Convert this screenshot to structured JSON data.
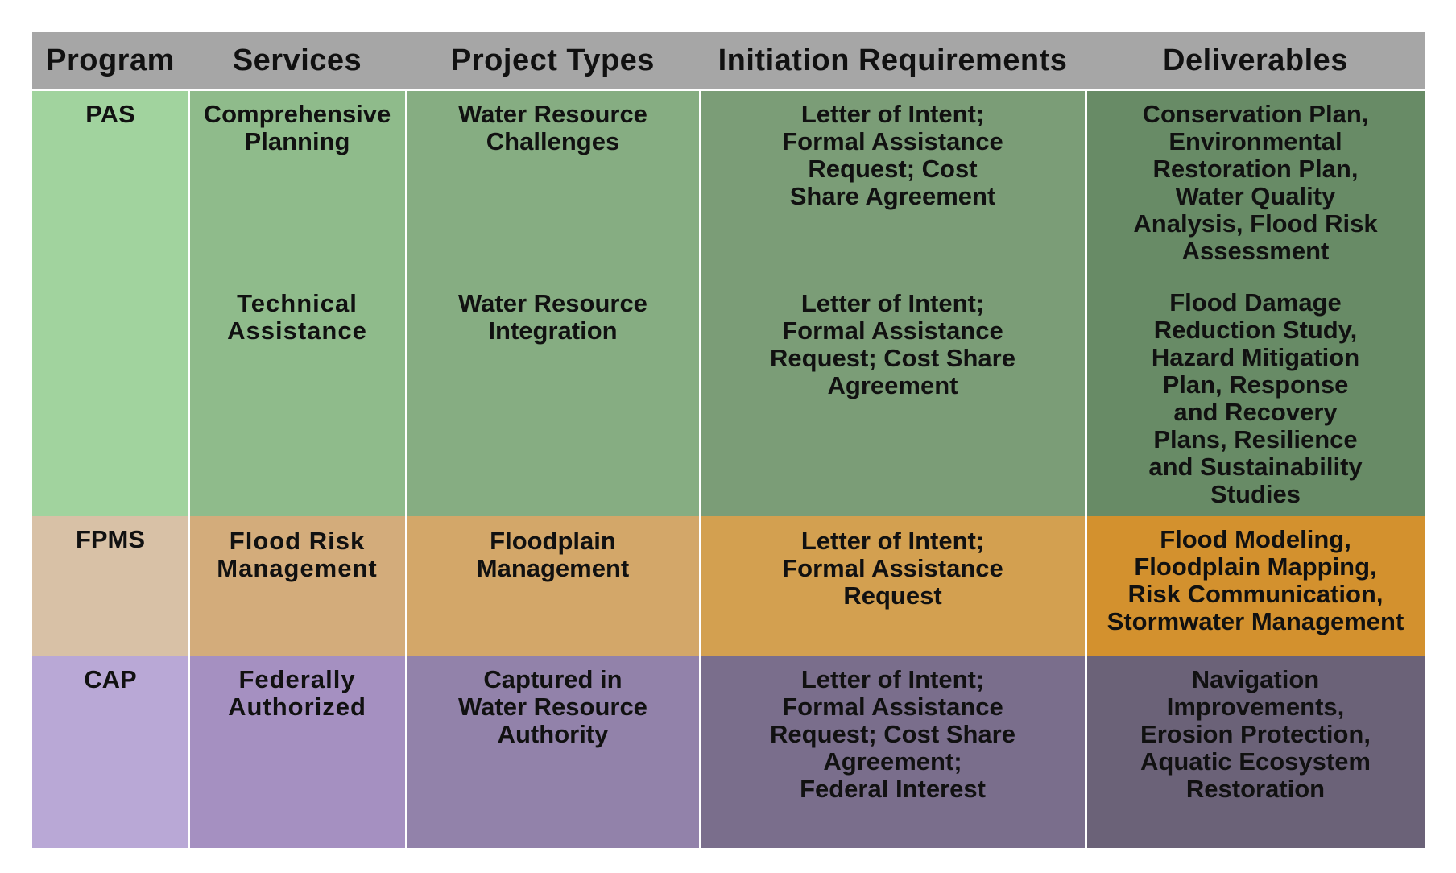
{
  "header": {
    "program": "Program",
    "services": "Services",
    "project_types": "Project Types",
    "initiation": "Initiation Requirements",
    "deliverables": "Deliverables"
  },
  "colors": {
    "header_bg": "#a6a6a6",
    "pas": [
      "#a1d39e",
      "#8fbb8b",
      "#86ad82",
      "#7b9d77",
      "#688b66"
    ],
    "fpms": [
      "#d8c1a6",
      "#d3ac7b",
      "#d3a769",
      "#d3a050",
      "#d3912e"
    ],
    "cap": [
      "#b9a8d6",
      "#a590c1",
      "#9282aa",
      "#7a6e8c",
      "#6b6278"
    ]
  },
  "rows": {
    "pas": {
      "program": "PAS",
      "services_1": "Comprehensive\nPlanning",
      "services_2": "Technical\nAssistance",
      "project_types_1": "Water Resource\nChallenges",
      "project_types_2": "Water Resource\nIntegration",
      "initiation_1": "Letter of Intent;\nFormal Assistance\nRequest; Cost\nShare Agreement",
      "initiation_2": "Letter of Intent;\nFormal Assistance\nRequest; Cost Share\nAgreement",
      "deliverables_1": "Conservation Plan,\nEnvironmental\nRestoration Plan,\nWater Quality\nAnalysis, Flood Risk\nAssessment",
      "deliverables_2": "Flood Damage\nReduction Study,\nHazard Mitigation\nPlan, Response\nand Recovery\nPlans, Resilience\nand Sustainability\nStudies"
    },
    "fpms": {
      "program": "FPMS",
      "services": "Flood Risk\nManagement",
      "project_types": "Floodplain\nManagement",
      "initiation": "Letter of Intent;\nFormal Assistance\nRequest",
      "deliverables": "Flood Modeling,\nFloodplain Mapping,\nRisk Communication,\nStormwater Management"
    },
    "cap": {
      "program": "CAP",
      "services": "Federally\nAuthorized",
      "project_types": "Captured in\nWater Resource\nAuthority",
      "initiation": "Letter of Intent;\nFormal Assistance\nRequest; Cost Share\nAgreement;\nFederal Interest",
      "deliverables": "Navigation\nImprovements,\nErosion Protection,\nAquatic Ecosystem\nRestoration"
    }
  }
}
